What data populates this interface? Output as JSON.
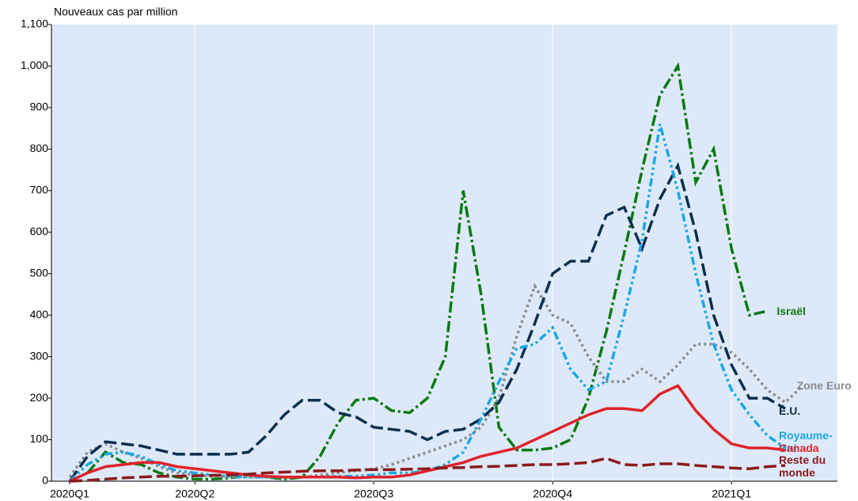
{
  "chart_data": {
    "type": "line",
    "y_label": "Nouveaux cas par million",
    "categories": [
      "2020Q1",
      null,
      null,
      null,
      null,
      null,
      null,
      "2020Q2",
      null,
      null,
      null,
      null,
      null,
      null,
      null,
      null,
      null,
      "2020Q3",
      null,
      null,
      null,
      null,
      null,
      null,
      null,
      null,
      null,
      "2020Q4",
      null,
      null,
      null,
      null,
      null,
      null,
      null,
      null,
      null,
      "2021Q1",
      null,
      null,
      null,
      null,
      null
    ],
    "ylim": [
      0,
      1100
    ],
    "yticks": [
      0,
      100,
      200,
      300,
      400,
      500,
      600,
      700,
      800,
      900,
      {
        "value": 1000,
        "label": "1,000"
      },
      {
        "value": 1100,
        "label": "1,100"
      }
    ],
    "grid": "vertical",
    "background": "#dde9f9",
    "series": [
      {
        "name": "Israël",
        "color": "#0a7a12",
        "dash": "dashdot",
        "values": [
          0,
          20,
          70,
          45,
          40,
          20,
          10,
          5,
          5,
          8,
          15,
          10,
          5,
          10,
          60,
          140,
          195,
          200,
          170,
          165,
          200,
          300,
          700,
          450,
          130,
          75,
          75,
          80,
          100,
          200,
          360,
          550,
          750,
          930,
          1000,
          720,
          800,
          560,
          400,
          410,
          null,
          null,
          null
        ]
      },
      {
        "name": "Zone Euro",
        "color": "#8a8a8a",
        "dash": "dot",
        "values": [
          10,
          70,
          90,
          70,
          55,
          35,
          20,
          15,
          12,
          10,
          10,
          10,
          10,
          10,
          15,
          20,
          25,
          30,
          40,
          55,
          70,
          85,
          100,
          130,
          200,
          350,
          470,
          400,
          380,
          300,
          240,
          240,
          270,
          240,
          280,
          330,
          330,
          310,
          270,
          220,
          190,
          230,
          null
        ]
      },
      {
        "name": "É.U.",
        "color": "#0b2f4f",
        "dash": "dash",
        "values": [
          0,
          60,
          95,
          90,
          85,
          75,
          65,
          65,
          65,
          65,
          70,
          110,
          160,
          195,
          195,
          165,
          155,
          130,
          125,
          120,
          100,
          120,
          125,
          150,
          190,
          270,
          380,
          500,
          530,
          530,
          640,
          660,
          560,
          680,
          760,
          600,
          400,
          280,
          200,
          200,
          175,
          null,
          null
        ]
      },
      {
        "name": "Royaume-Uni",
        "color": "#1aa7e6",
        "dash": "dashdotdot",
        "values": [
          0,
          40,
          65,
          70,
          60,
          40,
          25,
          20,
          15,
          12,
          10,
          10,
          10,
          10,
          10,
          12,
          12,
          15,
          20,
          20,
          25,
          40,
          70,
          150,
          240,
          320,
          330,
          370,
          270,
          220,
          240,
          400,
          580,
          860,
          700,
          500,
          330,
          220,
          160,
          110,
          80,
          null,
          null
        ]
      },
      {
        "name": "Canada",
        "color": "#e0232b",
        "dash": "solid",
        "values": [
          0,
          20,
          35,
          40,
          45,
          45,
          35,
          30,
          25,
          20,
          15,
          12,
          10,
          10,
          10,
          10,
          8,
          10,
          10,
          15,
          25,
          35,
          45,
          60,
          70,
          80,
          100,
          120,
          140,
          160,
          175,
          175,
          170,
          210,
          230,
          170,
          125,
          90,
          80,
          80,
          75,
          null,
          null
        ]
      },
      {
        "name": "Reste du monde",
        "color": "#8b1a1a",
        "dash": "dash",
        "values": [
          0,
          2,
          5,
          8,
          10,
          12,
          12,
          13,
          14,
          15,
          17,
          20,
          22,
          24,
          25,
          25,
          27,
          28,
          28,
          29,
          30,
          32,
          33,
          35,
          36,
          38,
          40,
          40,
          42,
          45,
          55,
          40,
          38,
          42,
          42,
          38,
          35,
          32,
          30,
          35,
          38,
          null,
          null
        ]
      }
    ]
  }
}
